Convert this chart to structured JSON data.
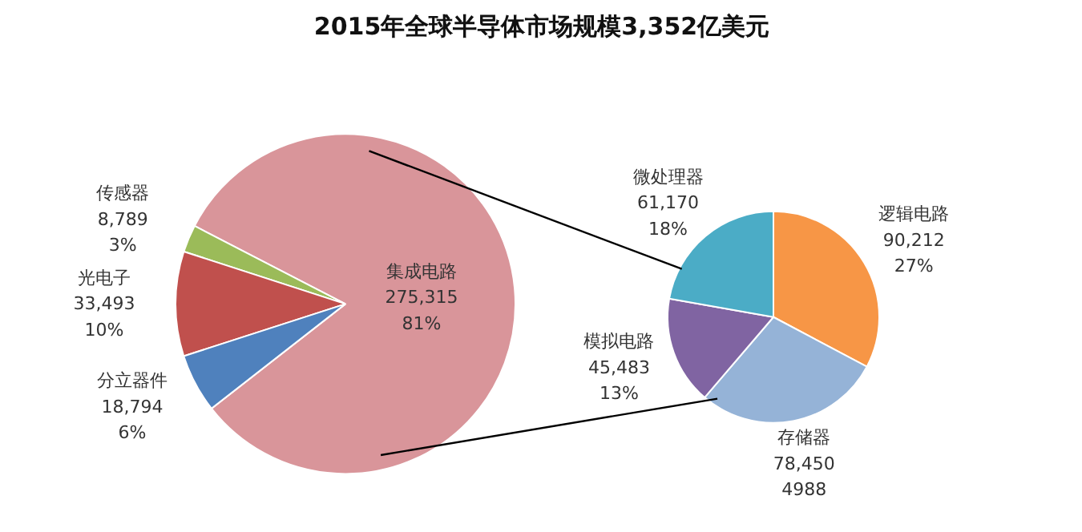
{
  "chart_data": [
    {
      "type": "pie",
      "title": "2015年全球半导体市场规模3,352亿美元",
      "categories": [
        "集成电路",
        "传感器",
        "光电子",
        "分立器件"
      ],
      "values": [
        275315,
        8789,
        33493,
        18794
      ],
      "colors": [
        "#d9959a",
        "#9bbb59",
        "#c0504d",
        "#4f81bd"
      ],
      "value_labels": [
        "275,315\n81%",
        "8,789\n3%",
        "33,493\n10%",
        "18,794\n6%"
      ]
    },
    {
      "type": "pie",
      "categories": [
        "逻辑电路",
        "存储器",
        "模拟电路",
        "微处理器"
      ],
      "values": [
        90212,
        78450,
        45483,
        61170
      ],
      "colors": [
        "#f79646",
        "#95b3d7",
        "#8064a2",
        "#4bacc6"
      ],
      "value_labels": [
        "90,212\n27%",
        "78,450\n4988",
        "45,483\n13%",
        "61,170\n18%"
      ]
    }
  ]
}
